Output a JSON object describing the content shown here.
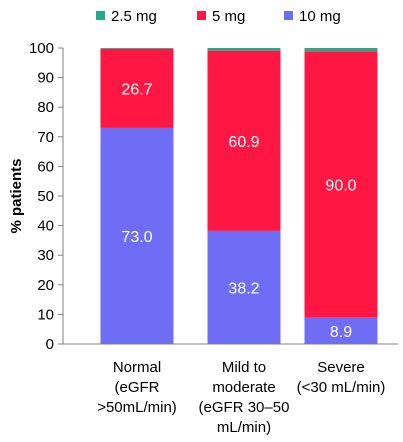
{
  "chart_data": {
    "type": "bar",
    "stacked": true,
    "categories": [
      [
        "Normal",
        "(eGFR",
        ">50mL/min)"
      ],
      [
        "Mild to",
        "moderate",
        "(eGFR 30–50",
        "mL/min)"
      ],
      [
        "Severe",
        "(<30 mL/min)"
      ]
    ],
    "series": [
      {
        "name": "10 mg",
        "color": "#6f6cf5",
        "values": [
          73.0,
          38.2,
          8.9
        ],
        "labels": [
          "73.0",
          "38.2",
          "8.9"
        ]
      },
      {
        "name": "5 mg",
        "color": "#ff1744",
        "values": [
          26.7,
          60.9,
          90.0
        ],
        "labels": [
          "26.7",
          "60.9",
          "90.0"
        ]
      },
      {
        "name": "2.5 mg",
        "color": "#26a98b",
        "values": [
          0.3,
          0.9,
          1.1
        ],
        "labels": [
          "",
          "",
          ""
        ]
      }
    ],
    "legend_order": [
      "2.5 mg",
      "5 mg",
      "10 mg"
    ],
    "legend_position": "top",
    "ylabel": "% patients",
    "ylim": [
      0,
      100
    ],
    "yticks": [
      0,
      10,
      20,
      30,
      40,
      50,
      60,
      70,
      80,
      90,
      100
    ],
    "grid": false
  }
}
